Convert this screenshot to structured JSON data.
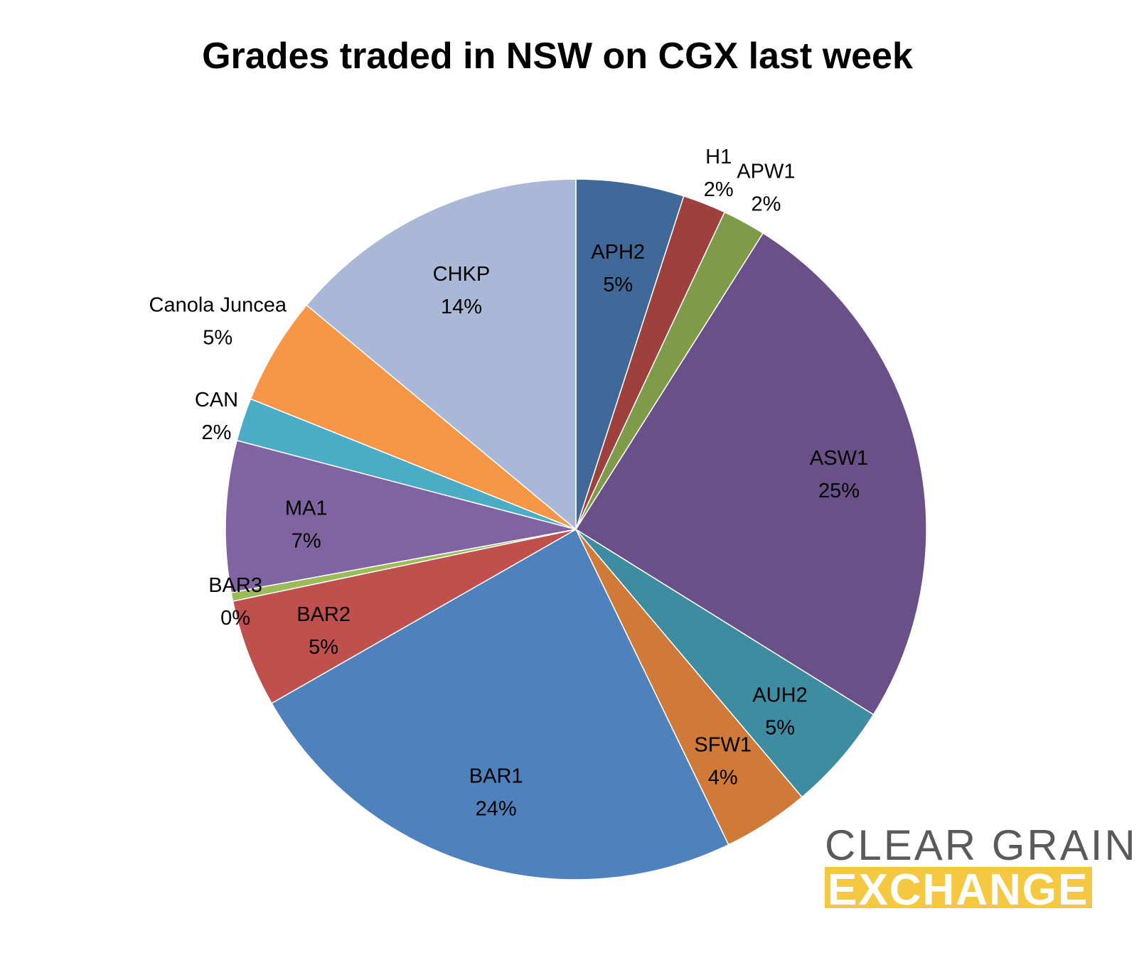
{
  "chart_data": {
    "type": "pie",
    "title": "Grades traded in NSW on CGX last week",
    "slices": [
      {
        "name": "APH2",
        "value": 5,
        "label": "5%",
        "color": "#406898"
      },
      {
        "name": "H1",
        "value": 2,
        "label": "2%",
        "color": "#9e403e"
      },
      {
        "name": "APW1",
        "value": 2,
        "label": "2%",
        "color": "#7f9b4a"
      },
      {
        "name": "ASW1",
        "value": 25,
        "label": "25%",
        "color": "#6a5088"
      },
      {
        "name": "AUH2",
        "value": 5,
        "label": "5%",
        "color": "#3d8ca1"
      },
      {
        "name": "SFW1",
        "value": 4,
        "label": "4%",
        "color": "#cf7a38"
      },
      {
        "name": "BAR1",
        "value": 24,
        "label": "24%",
        "color": "#4f81bd"
      },
      {
        "name": "BAR2",
        "value": 5,
        "label": "5%",
        "color": "#c0504d"
      },
      {
        "name": "BAR3",
        "value": 0.4,
        "label": "0%",
        "color": "#9bbb59"
      },
      {
        "name": "MA1",
        "value": 7,
        "label": "7%",
        "color": "#8064a2"
      },
      {
        "name": "CAN",
        "value": 2,
        "label": "2%",
        "color": "#4bacc6"
      },
      {
        "name": "Canola Juncea",
        "value": 5,
        "label": "5%",
        "color": "#f79646"
      },
      {
        "name": "CHKP",
        "value": 14,
        "label": "14%",
        "color": "#a9b8d6"
      }
    ],
    "legend": "none",
    "start_angle": "12 o'clock",
    "direction": "clockwise"
  },
  "logo": {
    "line1": "CLEAR GRAIN",
    "line2": "EXCHANGE",
    "line1_color": "#5a5a5a",
    "line2_bg_color": "#f5c842"
  }
}
